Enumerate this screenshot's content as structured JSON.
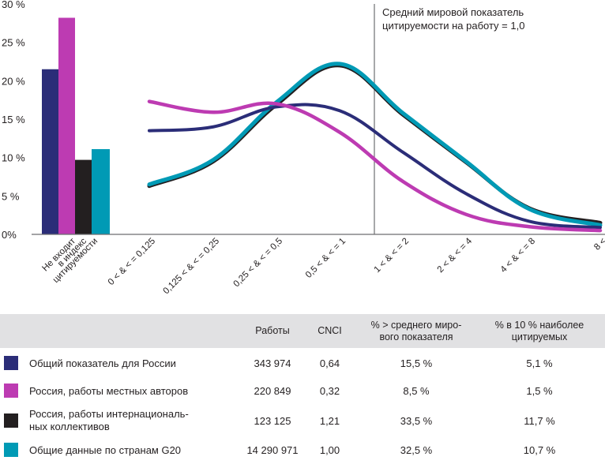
{
  "chart_data": {
    "type": "line",
    "title": "",
    "xlabel": "",
    "ylabel": "",
    "ylim": [
      0,
      30
    ],
    "yticks": [
      {
        "value": 0,
        "label": "0%"
      },
      {
        "value": 5,
        "label": "5 %"
      },
      {
        "value": 10,
        "label": "10 %"
      },
      {
        "value": 15,
        "label": "15 %"
      },
      {
        "value": 20,
        "label": "20 %"
      },
      {
        "value": 25,
        "label": "25 %"
      },
      {
        "value": 30,
        "label": "30 %"
      }
    ],
    "grid": false,
    "bar_category": {
      "label_lines": [
        "Не входит",
        "в индекс",
        "цитируемости"
      ],
      "values": [
        21.5,
        28.2,
        9.7,
        11.1
      ]
    },
    "categories": [
      "0 < & < = 0,125",
      "0,125 < & < = 0,25",
      "0,25 < & < = 0,5",
      "0,5 < & < = 1",
      "1 < & < = 2",
      "2 < & < = 4",
      "4 < & < = 8",
      "8 <"
    ],
    "series": [
      {
        "name": "Общий показатель для России",
        "color": "#2b2d78",
        "values": [
          13.5,
          14.0,
          16.6,
          16.1,
          10.7,
          5.3,
          1.7,
          0.9
        ]
      },
      {
        "name": "Россия, работы местных авторов",
        "color": "#bd3bb2",
        "values": [
          17.3,
          15.9,
          17.0,
          13.3,
          6.9,
          2.6,
          1.0,
          0.5
        ]
      },
      {
        "name": "Россия, работы интернациональных коллективов",
        "color": "#231f20",
        "values": [
          6.3,
          9.5,
          16.9,
          22.0,
          15.6,
          9.4,
          3.4,
          1.5
        ]
      },
      {
        "name": "Общие данные по странам G20",
        "color": "#009ab5",
        "values": [
          6.5,
          9.7,
          17.2,
          22.2,
          15.8,
          9.5,
          3.3,
          1.2
        ]
      }
    ],
    "reference_line": {
      "x_between": [
        "0,5 < & < = 1",
        "1 < & < = 2"
      ],
      "label_lines": [
        "Средний мировой показатель",
        "цитируемости на работу = 1,0"
      ]
    },
    "legend": "table-below"
  },
  "table": {
    "headers": {
      "papers": "Работы",
      "cnci": "CNCI",
      "above_avg_line1": "% > среднего миро-",
      "above_avg_line2": "вого показателя",
      "top10_line1": "% в 10 % наиболее",
      "top10_line2": "цитируемых"
    },
    "rows": [
      {
        "label_line1": "Общий показатель для России",
        "label_line2": "",
        "color": "#2b2d78",
        "papers": "343 974",
        "cnci": "0,64",
        "above_avg": "15,5 %",
        "top10": "5,1 %"
      },
      {
        "label_line1": "Россия, работы местных авторов",
        "label_line2": "",
        "color": "#bd3bb2",
        "papers": "220 849",
        "cnci": "0,32",
        "above_avg": "8,5 %",
        "top10": "1,5 %"
      },
      {
        "label_line1": "Россия, работы интернациональ-",
        "label_line2": "ных коллективов",
        "color": "#231f20",
        "papers": "123 125",
        "cnci": "1,21",
        "above_avg": "33,5 %",
        "top10": "11,7 %"
      },
      {
        "label_line1": "Общие данные по странам G20",
        "label_line2": "",
        "color": "#009ab5",
        "papers": "14 290 971",
        "cnci": "1,00",
        "above_avg": "32,5 %",
        "top10": "10,7 %"
      }
    ]
  }
}
